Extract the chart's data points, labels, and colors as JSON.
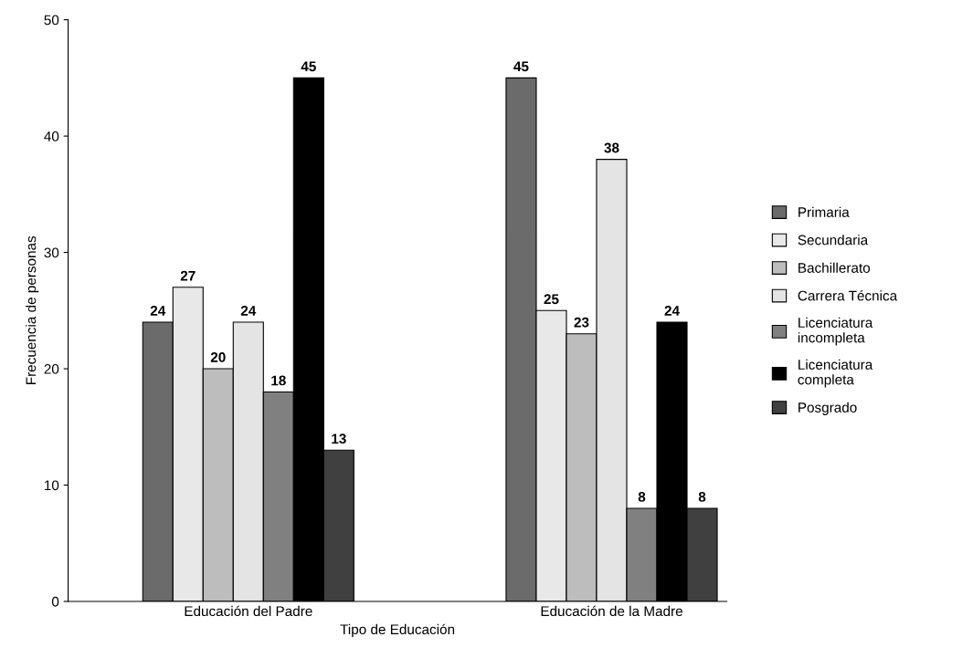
{
  "chart_data": {
    "type": "bar",
    "xlabel": "Tipo de Educación",
    "ylabel": "Frecuencia de personas",
    "categories": [
      "Educación del Padre",
      "Educación de la Madre"
    ],
    "series": [
      {
        "name": "Primaria",
        "color": "#6b6b6b",
        "values": [
          24,
          45
        ]
      },
      {
        "name": "Secundaria",
        "color": "#e8e8e8",
        "values": [
          27,
          25
        ]
      },
      {
        "name": "Bachillerato",
        "color": "#bdbdbd",
        "values": [
          20,
          23
        ]
      },
      {
        "name": "Carrera Técnica",
        "color": "#e4e4e4",
        "values": [
          24,
          38
        ]
      },
      {
        "name": "Licenciatura\nincompleta",
        "color": "#808080",
        "values": [
          18,
          8
        ]
      },
      {
        "name": "Licenciatura\ncompleta",
        "color": "#000000",
        "values": [
          45,
          24
        ]
      },
      {
        "name": "Posgrado",
        "color": "#404040",
        "values": [
          13,
          8
        ]
      }
    ],
    "ylim": [
      0,
      50
    ],
    "yticks": [
      0,
      10,
      20,
      30,
      40,
      50
    ],
    "grid": false,
    "legend": "right",
    "data_labels": true
  }
}
